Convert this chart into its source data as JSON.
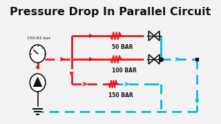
{
  "title": "Pressure Drop In Parallel Circuit",
  "title_fontsize": 11.5,
  "bg_color": "#f2f2f2",
  "red_color": "#e8151a",
  "cyan_color": "#00bcd4",
  "black_color": "#111111",
  "white_color": "#ffffff",
  "pressure_label": "150.63 bar",
  "bar_labels": [
    "50 BAR",
    "100 BAR",
    "150 BAR"
  ],
  "lw": 2.0
}
